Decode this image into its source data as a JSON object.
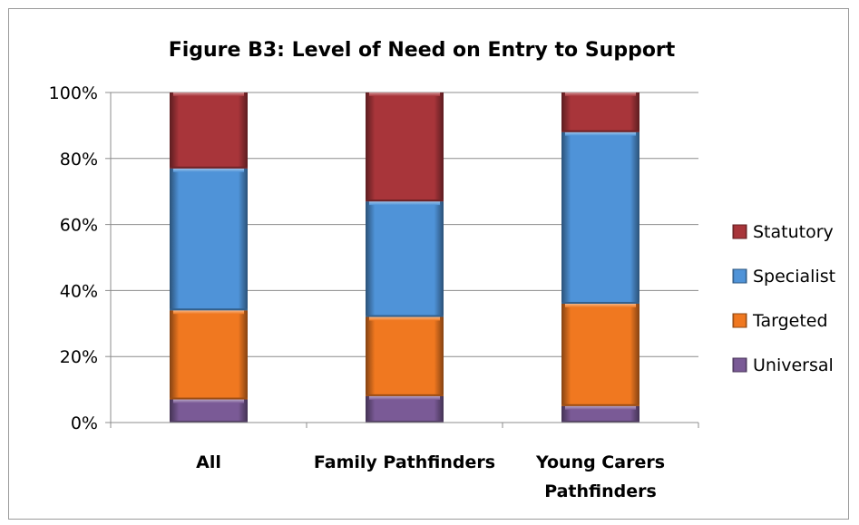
{
  "chart_data": {
    "type": "bar",
    "stacked": true,
    "title": "Figure B3: Level of Need on Entry to Support",
    "xlabel": "",
    "ylabel": "",
    "ylim": [
      0,
      100
    ],
    "y_ticks": [
      "0%",
      "20%",
      "40%",
      "60%",
      "80%",
      "100%"
    ],
    "y_tick_values": [
      0,
      20,
      40,
      60,
      80,
      100
    ],
    "categories": [
      "All",
      "Family Pathfinders",
      "Young Carers Pathfinders"
    ],
    "category_lines": [
      [
        "All"
      ],
      [
        "Family Pathfinders"
      ],
      [
        "Young Carers",
        "Pathfinders"
      ]
    ],
    "series": [
      {
        "name": "Universal",
        "values": [
          7,
          8,
          5
        ],
        "color": "#7a5a96"
      },
      {
        "name": "Targeted",
        "values": [
          27,
          24,
          31
        ],
        "color": "#f07820"
      },
      {
        "name": "Specialist",
        "values": [
          43,
          35,
          52
        ],
        "color": "#4f93d8"
      },
      {
        "name": "Statutory",
        "values": [
          23,
          33,
          12
        ],
        "color": "#a8353a"
      }
    ],
    "legend_order": [
      "Statutory",
      "Specialist",
      "Targeted",
      "Universal"
    ],
    "legend_position": "right",
    "grid": true
  }
}
